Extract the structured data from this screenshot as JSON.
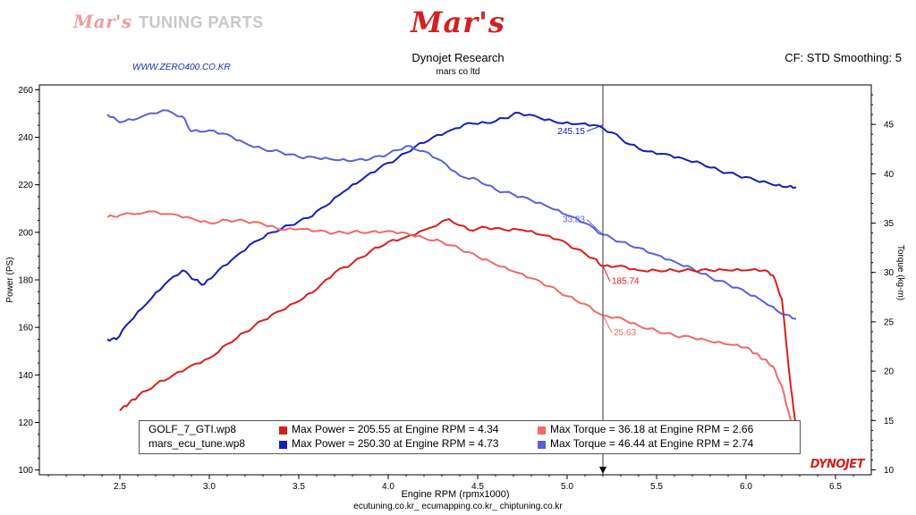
{
  "header": {
    "brand_left_script": "Mar's",
    "brand_left_text": "TUNING PARTS",
    "brand_center": "Mar's",
    "website": "WWW.ZERO400.CO.KR",
    "title": "Dynojet Research",
    "subtitle": "mars co ltd",
    "cf_info": "CF: STD Smoothing: 5"
  },
  "footer": {
    "links": "ecutuning.co.kr_ ecumapping.co.kr_ chiptuning.co.kr",
    "logo": "DYNOJET"
  },
  "legend": {
    "rows": [
      {
        "file": "GOLF_7_GTI.wp8",
        "power": "Max Power = 205.55 at Engine RPM = 4.34",
        "torque": "Max Torque = 36.18 at Engine RPM = 2.66",
        "power_color": "#dd1c1c",
        "torque_color": "#ef6a6a"
      },
      {
        "file": "mars_ecu_tune.wp8",
        "power": "Max Power = 250.30 at Engine RPM = 4.73",
        "torque": "Max Torque = 46.44 at Engine RPM = 2.74",
        "power_color": "#1420b8",
        "torque_color": "#5a60dc"
      }
    ]
  },
  "chart_data": {
    "type": "line",
    "xlabel": "Engine RPM (rpmx1000)",
    "ylabel": "Power (PS)",
    "y2label": "Torque (kg-m)",
    "xlim": [
      2.05,
      6.7
    ],
    "ylim": [
      98,
      262
    ],
    "y2lim": [
      9.5,
      49.0
    ],
    "xticks": [
      2.5,
      3.0,
      3.5,
      4.0,
      4.5,
      5.0,
      5.5,
      6.0,
      6.5
    ],
    "yticks": [
      100,
      120,
      140,
      160,
      180,
      200,
      220,
      240,
      260
    ],
    "y2ticks": [
      10,
      15,
      20,
      25,
      30,
      35,
      40,
      45
    ],
    "cursor_x": 5.2,
    "cursor_labels": [
      {
        "text": "245.15",
        "color": "#1420b8",
        "x": 5.2,
        "y": 245.15,
        "axis": "left"
      },
      {
        "text": "33.83",
        "color": "#5a60dc",
        "x": 5.2,
        "y": 33.83,
        "axis": "right"
      },
      {
        "text": "185.74",
        "color": "#dd1c1c",
        "x": 5.2,
        "y": 185.74,
        "axis": "left"
      },
      {
        "text": "25.63",
        "color": "#ef6a6a",
        "x": 5.2,
        "y": 25.63,
        "axis": "right"
      }
    ],
    "series": [
      {
        "name": "mars_ecu_tune.wp8 Power",
        "color": "#1420b8",
        "axis": "left",
        "x": [
          2.43,
          2.48,
          2.55,
          2.65,
          2.75,
          2.85,
          2.92,
          2.97,
          3.05,
          3.15,
          3.25,
          3.35,
          3.45,
          3.55,
          3.65,
          3.75,
          3.85,
          3.95,
          4.05,
          4.15,
          4.25,
          4.35,
          4.45,
          4.55,
          4.65,
          4.73,
          4.85,
          4.95,
          5.05,
          5.15,
          5.25,
          5.35,
          5.45,
          5.55,
          5.65,
          5.75,
          5.85,
          5.95,
          6.05,
          6.15,
          6.22,
          6.28
        ],
        "y": [
          155,
          155,
          162,
          170,
          178,
          184,
          180,
          178,
          184,
          190,
          196,
          200,
          203,
          206,
          211,
          217,
          222,
          227,
          231,
          236,
          240,
          243,
          246,
          246,
          248,
          250.3,
          248,
          246,
          245.5,
          245.15,
          242,
          237,
          234,
          233,
          231,
          229,
          226,
          224,
          222,
          220,
          219,
          219
        ]
      },
      {
        "name": "mars_ecu_tune.wp8 Torque",
        "color": "#5a60dc",
        "axis": "right",
        "x": [
          2.43,
          2.5,
          2.6,
          2.74,
          2.85,
          2.9,
          3.0,
          3.1,
          3.2,
          3.3,
          3.4,
          3.5,
          3.6,
          3.7,
          3.8,
          3.9,
          4.0,
          4.1,
          4.2,
          4.3,
          4.4,
          4.5,
          4.6,
          4.7,
          4.8,
          4.9,
          5.0,
          5.1,
          5.2,
          5.3,
          5.4,
          5.5,
          5.6,
          5.7,
          5.8,
          5.9,
          6.0,
          6.1,
          6.2,
          6.28
        ],
        "y": [
          46.0,
          45.2,
          45.6,
          46.44,
          45.8,
          44.3,
          44.4,
          44.0,
          43.1,
          42.5,
          42.2,
          41.7,
          41.6,
          41.4,
          41.3,
          41.5,
          42.0,
          42.8,
          42.3,
          41.3,
          39.8,
          39.4,
          38.4,
          37.9,
          37.3,
          36.6,
          35.8,
          35.0,
          33.83,
          33.1,
          32.5,
          31.8,
          31.1,
          30.4,
          29.5,
          28.8,
          28.0,
          27.0,
          25.8,
          25.3
        ]
      },
      {
        "name": "GOLF_7_GTI.wp8 Power",
        "color": "#dd1c1c",
        "axis": "left",
        "x": [
          2.5,
          2.55,
          2.6,
          2.7,
          2.8,
          2.9,
          3.0,
          3.1,
          3.2,
          3.3,
          3.4,
          3.5,
          3.6,
          3.7,
          3.8,
          3.9,
          4.0,
          4.1,
          4.2,
          4.34,
          4.45,
          4.55,
          4.65,
          4.75,
          4.85,
          4.95,
          5.05,
          5.15,
          5.2,
          5.3,
          5.4,
          5.5,
          5.6,
          5.7,
          5.8,
          5.9,
          6.0,
          6.1,
          6.15,
          6.2,
          6.25,
          6.28
        ],
        "y": [
          125,
          128,
          131,
          136,
          140,
          144,
          147,
          153,
          158,
          163,
          167,
          171,
          176,
          183,
          187,
          192,
          196,
          198,
          201,
          205.55,
          201,
          202,
          201,
          201,
          199,
          197,
          193,
          189,
          185.74,
          186,
          184,
          184,
          184,
          184,
          184,
          184,
          184,
          184,
          182,
          172,
          135,
          118
        ]
      },
      {
        "name": "GOLF_7_GTI.wp8 Torque",
        "color": "#ef6a6a",
        "axis": "right",
        "x": [
          2.43,
          2.5,
          2.66,
          2.8,
          2.9,
          3.0,
          3.1,
          3.2,
          3.3,
          3.4,
          3.5,
          3.6,
          3.7,
          3.8,
          3.9,
          4.0,
          4.1,
          4.2,
          4.3,
          4.4,
          4.5,
          4.6,
          4.7,
          4.8,
          4.9,
          5.0,
          5.1,
          5.2,
          5.3,
          5.4,
          5.5,
          5.6,
          5.7,
          5.8,
          5.9,
          6.0,
          6.05,
          6.1,
          6.15,
          6.2,
          6.25,
          6.28
        ],
        "y": [
          35.6,
          35.8,
          36.18,
          35.9,
          35.5,
          35.0,
          35.3,
          35.2,
          34.9,
          34.3,
          34.4,
          34.2,
          34.0,
          34.1,
          34.1,
          34.2,
          34.0,
          33.5,
          33.1,
          32.4,
          31.6,
          30.8,
          30.1,
          29.4,
          28.6,
          27.6,
          26.8,
          25.63,
          25.4,
          24.6,
          24.1,
          23.6,
          23.4,
          23.0,
          22.7,
          22.4,
          21.8,
          21.2,
          20.5,
          18.5,
          15.0,
          13.8
        ]
      }
    ]
  }
}
